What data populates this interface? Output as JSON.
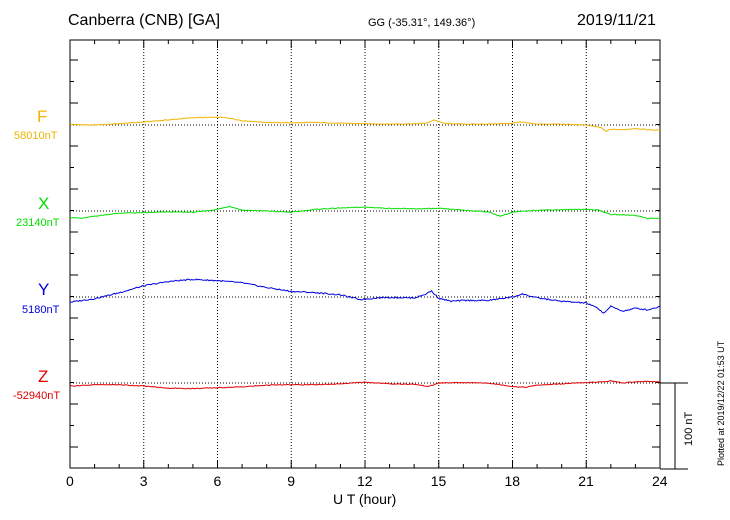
{
  "header": {
    "station": "Canberra (CNB)  [GA]",
    "coordinates": "GG (-35.31°, 149.36°)",
    "date": "2019/11/21"
  },
  "footer": {
    "plotted": "Plotted at 2019/12/22 01:53 UT",
    "scale_label": "100 nT"
  },
  "chart_data": {
    "type": "line",
    "xlabel": "U T (hour)",
    "x_ticks": [
      "0",
      "3",
      "6",
      "9",
      "12",
      "15",
      "18",
      "21",
      "24"
    ],
    "xlim": [
      0,
      24
    ],
    "scale_bar_nT": 100,
    "grid": true,
    "series": [
      {
        "name": "F",
        "baseline_label": "58010nT",
        "baseline_nT": 58010,
        "color": "#f0b400",
        "x": [
          0,
          1,
          2,
          3,
          4,
          5,
          6,
          6.5,
          7,
          8,
          9,
          10,
          11,
          12,
          13,
          14,
          14.5,
          14.8,
          15.2,
          16,
          17,
          18,
          18.3,
          19,
          20,
          21,
          21.3,
          21.6,
          21.8,
          22,
          22.5,
          23,
          23.5,
          24
        ],
        "y": [
          1,
          0,
          3,
          7,
          12,
          17,
          18,
          16,
          10,
          6,
          5,
          6,
          4,
          3,
          2,
          3,
          4,
          12,
          4,
          2,
          2,
          4,
          7,
          2,
          2,
          0,
          -3,
          -6,
          -15,
          -10,
          -11,
          -8,
          -11,
          -12
        ]
      },
      {
        "name": "X",
        "baseline_label": "23140nT",
        "baseline_nT": 23140,
        "color": "#00e000",
        "x": [
          0,
          0.5,
          1,
          2,
          3,
          4,
          5,
          5.5,
          6,
          6.5,
          7,
          8,
          9,
          10,
          11,
          12,
          13,
          14,
          15,
          16,
          17,
          17.5,
          18,
          19,
          20,
          21,
          21.5,
          22,
          23,
          23.5,
          24
        ],
        "y": [
          -15,
          -17,
          -12,
          -5,
          -4,
          -2,
          -3,
          0,
          4,
          11,
          2,
          0,
          -3,
          4,
          7,
          9,
          6,
          5,
          6,
          2,
          -2,
          -12,
          -3,
          2,
          3,
          4,
          2,
          -8,
          -10,
          -17,
          -17
        ]
      },
      {
        "name": "Y",
        "baseline_label": "5180nT",
        "baseline_nT": 5180,
        "color": "#0000e0",
        "x": [
          0,
          1,
          2,
          3,
          4,
          5,
          6,
          7,
          8,
          9,
          10,
          11,
          11.8,
          12.5,
          13,
          14,
          14.4,
          14.7,
          15,
          15.5,
          16,
          17,
          18,
          18.4,
          19,
          20,
          21,
          21.5,
          21.7,
          22,
          22.5,
          23,
          23.5,
          24
        ],
        "y": [
          -12,
          -4,
          10,
          26,
          36,
          41,
          38,
          33,
          22,
          13,
          10,
          5,
          -6,
          -2,
          -1,
          -2,
          5,
          14,
          -3,
          -10,
          -8,
          -8,
          0,
          7,
          -2,
          -10,
          -14,
          -27,
          -38,
          -22,
          -33,
          -26,
          -30,
          -22
        ]
      },
      {
        "name": "Z",
        "baseline_label": "-52940nT",
        "baseline_nT": -52940,
        "color": "#e00000",
        "x": [
          0,
          1,
          2,
          3,
          4,
          5,
          6,
          7,
          8,
          9,
          10,
          11,
          12,
          13,
          14,
          14.6,
          15,
          16,
          17,
          18,
          18.5,
          19,
          20,
          21,
          21.5,
          22,
          22.5,
          23,
          23.5,
          24
        ],
        "y": [
          -7,
          -4,
          -4,
          -7,
          -12,
          -13,
          -11,
          -9,
          -5,
          -4,
          -4,
          -2,
          2,
          -2,
          -3,
          -8,
          0,
          1,
          0,
          -8,
          -10,
          -5,
          -2,
          1,
          2,
          5,
          0,
          3,
          4,
          2
        ]
      }
    ]
  }
}
